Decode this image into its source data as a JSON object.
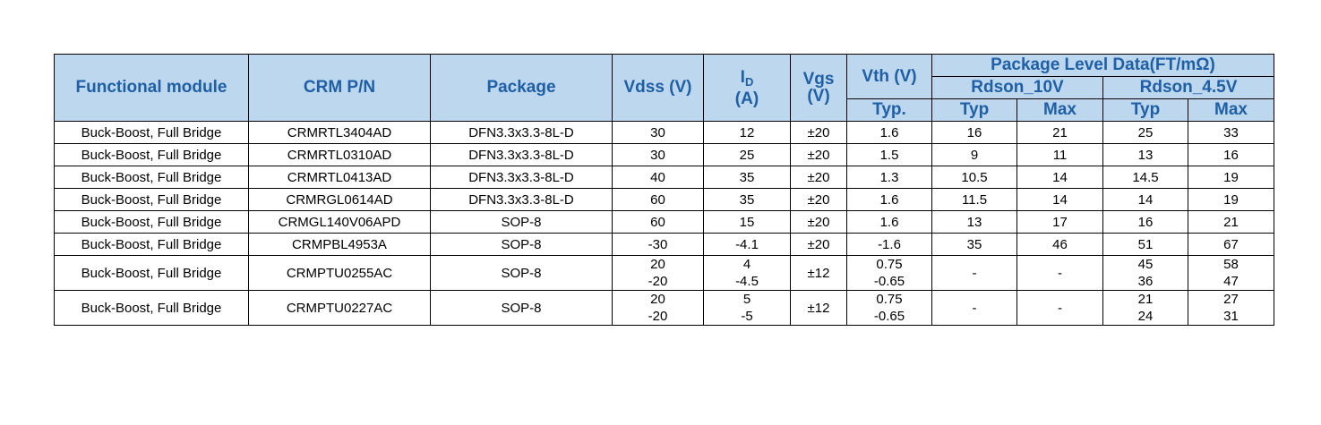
{
  "header": {
    "functional_module": "Functional module",
    "crm_pn": "CRM P/N",
    "package": "Package",
    "vdss": "Vdss (V)",
    "id_main": "I",
    "id_sub": "D",
    "id_unit": "(A)",
    "vgs": "Vgs",
    "vgs_unit": "(V)",
    "vth": "Vth (V)",
    "vth_typ": "Typ.",
    "package_level_data": "Package Level Data(FT/mΩ)",
    "rdson_10v": "Rdson_10V",
    "rdson_45v": "Rdson_4.5V",
    "typ": "Typ",
    "max": "Max"
  },
  "rows": [
    {
      "module": "Buck-Boost, Full Bridge",
      "pn": "CRMRTL3404AD",
      "package": "DFN3.3x3.3-8L-D",
      "vdss": [
        "30"
      ],
      "id": [
        "12"
      ],
      "vgs": "±20",
      "vth": [
        "1.6"
      ],
      "r10_typ": [
        "16"
      ],
      "r10_max": [
        "21"
      ],
      "r45_typ": [
        "25"
      ],
      "r45_max": [
        "33"
      ]
    },
    {
      "module": "Buck-Boost, Full Bridge",
      "pn": "CRMRTL0310AD",
      "package": "DFN3.3x3.3-8L-D",
      "vdss": [
        "30"
      ],
      "id": [
        "25"
      ],
      "vgs": "±20",
      "vth": [
        "1.5"
      ],
      "r10_typ": [
        "9"
      ],
      "r10_max": [
        "11"
      ],
      "r45_typ": [
        "13"
      ],
      "r45_max": [
        "16"
      ]
    },
    {
      "module": "Buck-Boost, Full Bridge",
      "pn": "CRMRTL0413AD",
      "package": "DFN3.3x3.3-8L-D",
      "vdss": [
        "40"
      ],
      "id": [
        "35"
      ],
      "vgs": "±20",
      "vth": [
        "1.3"
      ],
      "r10_typ": [
        "10.5"
      ],
      "r10_max": [
        "14"
      ],
      "r45_typ": [
        "14.5"
      ],
      "r45_max": [
        "19"
      ]
    },
    {
      "module": "Buck-Boost, Full Bridge",
      "pn": "CRMRGL0614AD",
      "package": "DFN3.3x3.3-8L-D",
      "vdss": [
        "60"
      ],
      "id": [
        "35"
      ],
      "vgs": "±20",
      "vth": [
        "1.6"
      ],
      "r10_typ": [
        "11.5"
      ],
      "r10_max": [
        "14"
      ],
      "r45_typ": [
        "14"
      ],
      "r45_max": [
        "19"
      ]
    },
    {
      "module": "Buck-Boost, Full Bridge",
      "pn": "CRMGL140V06APD",
      "package": "SOP-8",
      "vdss": [
        "60"
      ],
      "id": [
        "15"
      ],
      "vgs": "±20",
      "vth": [
        "1.6"
      ],
      "r10_typ": [
        "13"
      ],
      "r10_max": [
        "17"
      ],
      "r45_typ": [
        "16"
      ],
      "r45_max": [
        "21"
      ]
    },
    {
      "module": "Buck-Boost, Full Bridge",
      "pn": "CRMPBL4953A",
      "package": "SOP-8",
      "vdss": [
        "-30"
      ],
      "id": [
        "-4.1"
      ],
      "vgs": "±20",
      "vth": [
        "-1.6"
      ],
      "r10_typ": [
        "35"
      ],
      "r10_max": [
        "46"
      ],
      "r45_typ": [
        "51"
      ],
      "r45_max": [
        "67"
      ]
    },
    {
      "module": "Buck-Boost, Full Bridge",
      "pn": "CRMPTU0255AC",
      "package": "SOP-8",
      "vdss": [
        "20",
        "-20"
      ],
      "id": [
        "4",
        "-4.5"
      ],
      "vgs": "±12",
      "vth": [
        "0.75",
        "-0.65"
      ],
      "r10_typ": [
        "-"
      ],
      "r10_max": [
        "-"
      ],
      "r45_typ": [
        "45",
        "36"
      ],
      "r45_max": [
        "58",
        "47"
      ]
    },
    {
      "module": "Buck-Boost, Full Bridge",
      "pn": "CRMPTU0227AC",
      "package": "SOP-8",
      "vdss": [
        "20",
        "-20"
      ],
      "id": [
        "5",
        "-5"
      ],
      "vgs": "±12",
      "vth": [
        "0.75",
        "-0.65"
      ],
      "r10_typ": [
        "-"
      ],
      "r10_max": [
        "-"
      ],
      "r45_typ": [
        "21",
        "24"
      ],
      "r45_max": [
        "27",
        "31"
      ]
    }
  ],
  "colors": {
    "header_bg": "#bdd7ee",
    "header_text": "#1f5fa6",
    "border": "#000000"
  }
}
